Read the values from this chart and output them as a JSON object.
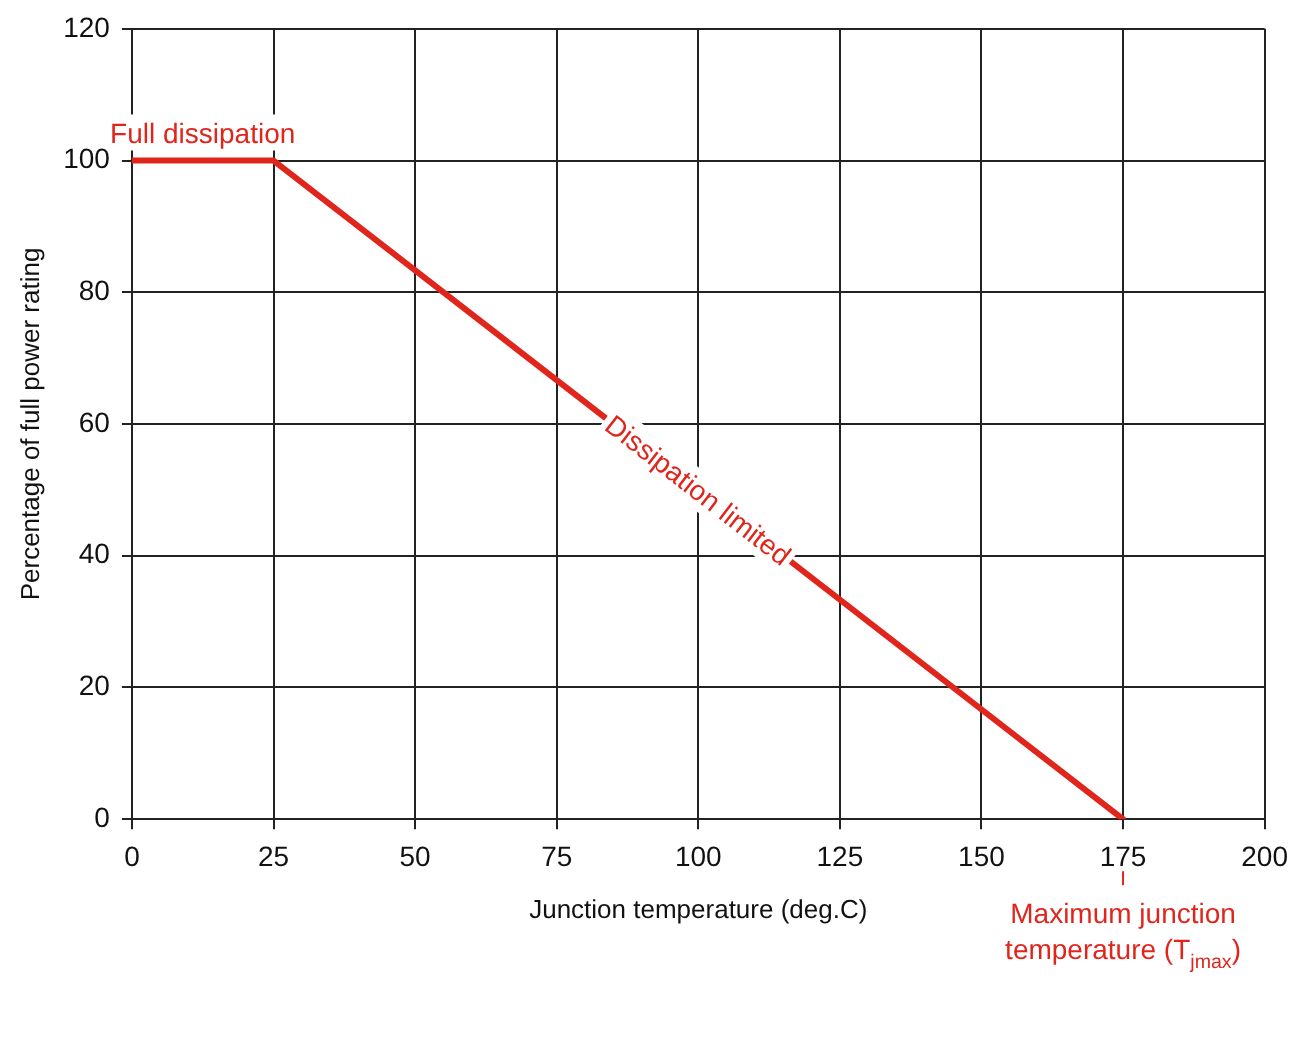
{
  "chart_data": {
    "type": "line",
    "xlabel": "Junction temperature (deg.C)",
    "ylabel": "Percentage of full power rating",
    "x": [
      0,
      25,
      175
    ],
    "series": [
      {
        "color": "#e0261c",
        "values": [
          100,
          100,
          0
        ]
      }
    ],
    "xlim": [
      0,
      200
    ],
    "xticks": [
      0,
      25,
      50,
      75,
      100,
      125,
      150,
      175,
      200
    ],
    "ylim": [
      0,
      120
    ],
    "yticks": [
      0,
      20,
      40,
      60,
      80,
      100,
      120
    ],
    "grid": true,
    "legend": false,
    "marker": "none",
    "line_style": "solid",
    "annotations": [
      {
        "text": "Full dissipation",
        "x": 12.5,
        "y": 100
      },
      {
        "text": "Dissipation limited",
        "x": 100,
        "y": 50
      },
      {
        "text": "Maximum junction temperature (T$_{jmax}$)",
        "x": 175,
        "y": 0
      }
    ]
  }
}
